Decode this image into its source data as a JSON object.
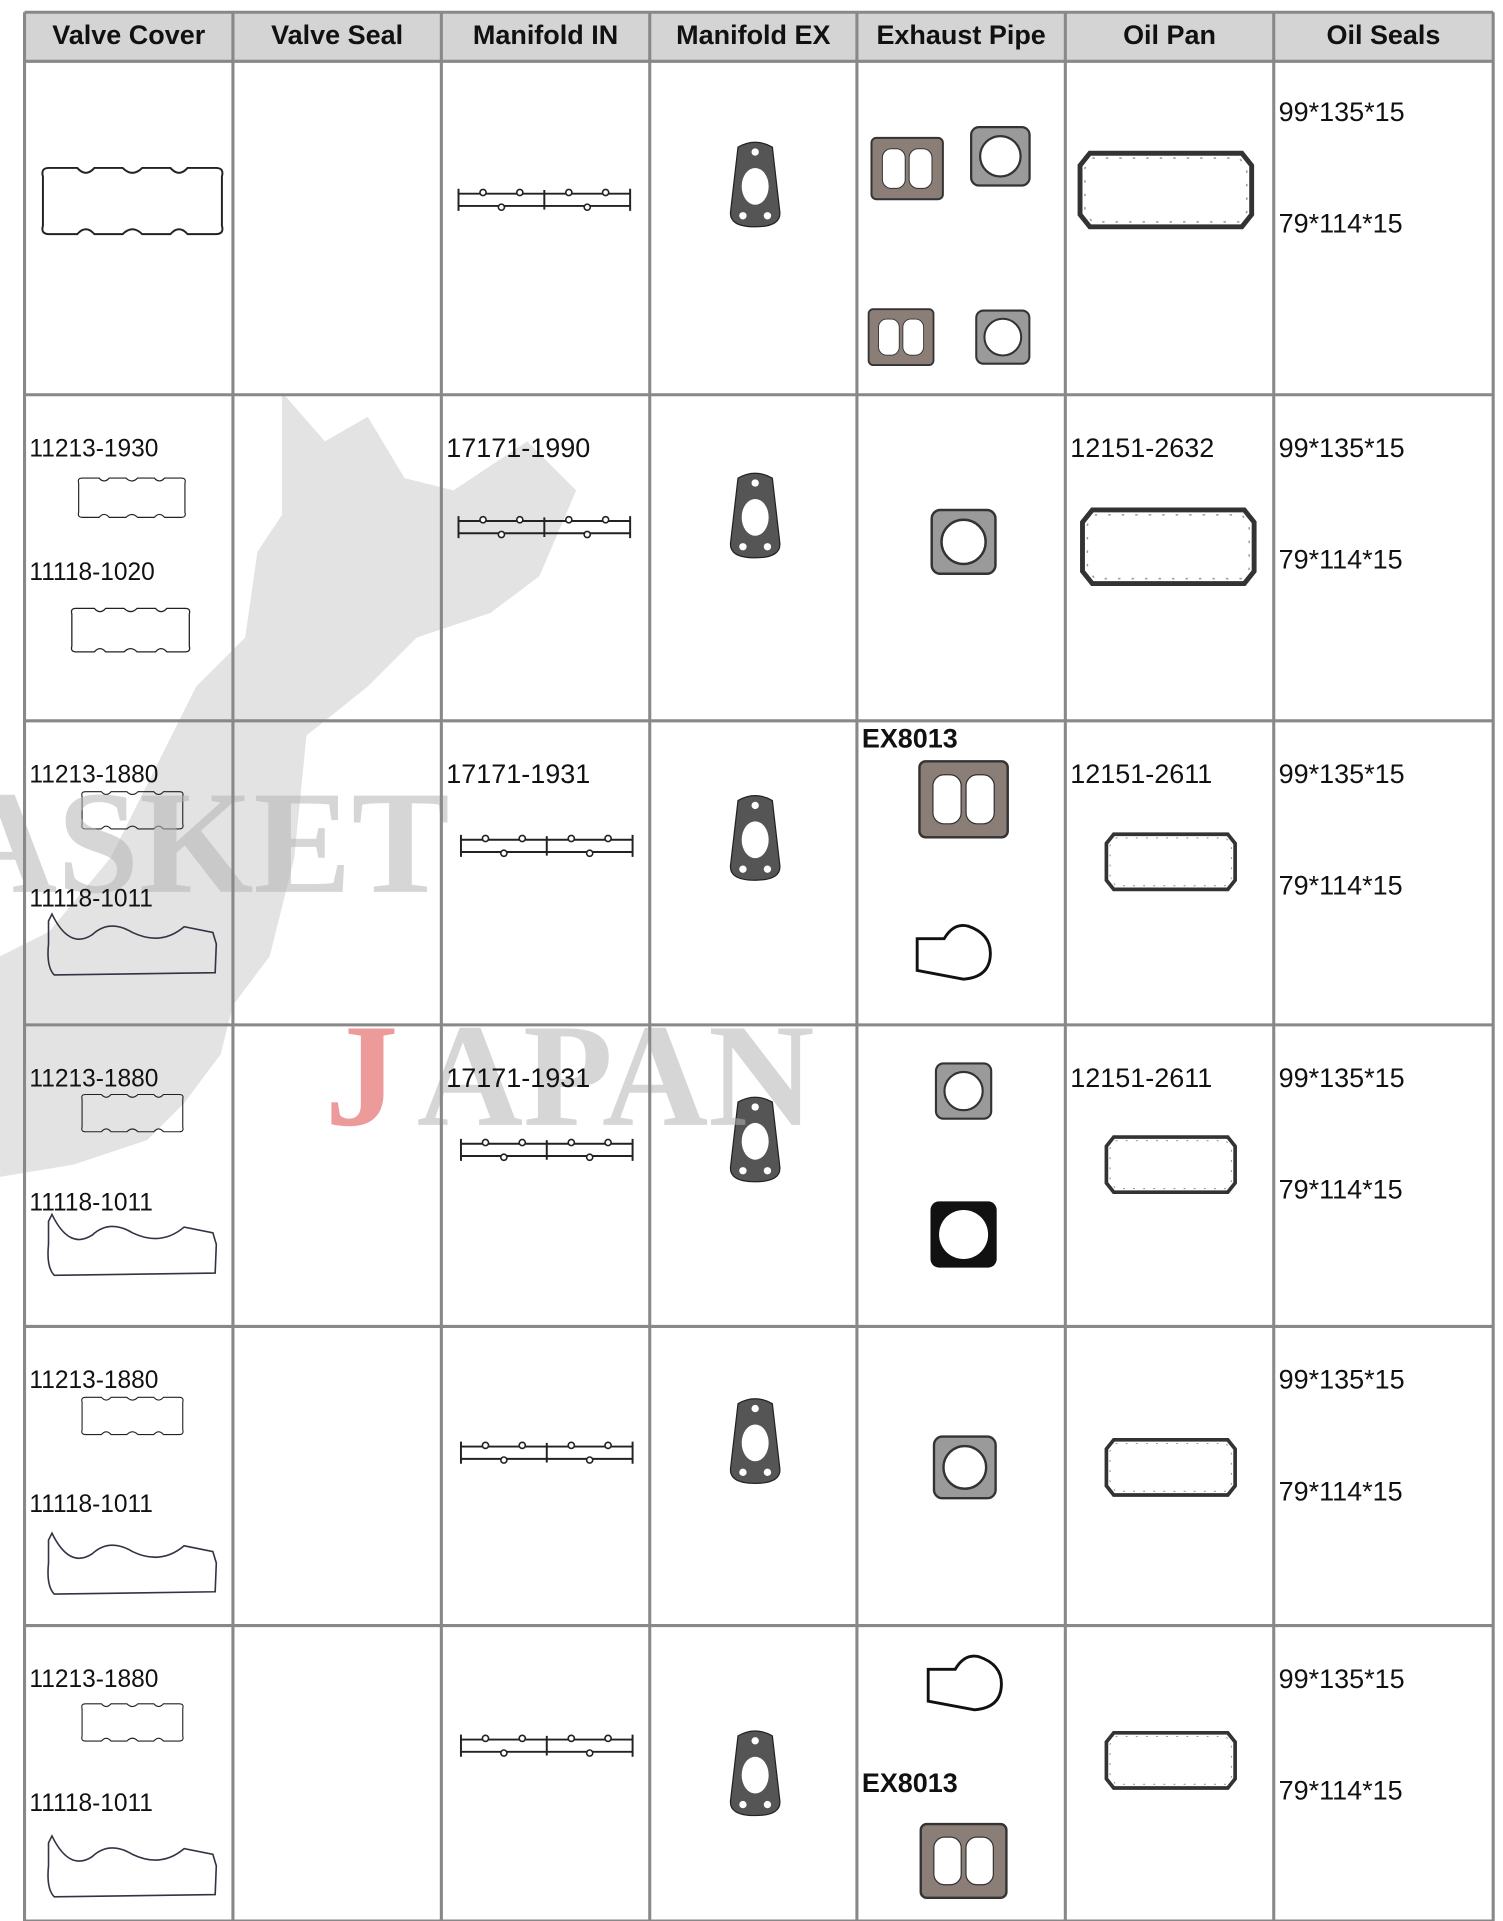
{
  "table": {
    "headers": [
      "Valve Cover",
      "Valve Seal",
      "Manifold IN",
      "Manifold EX",
      "Exhaust Pipe",
      "Oil Pan",
      "Oil Seals"
    ],
    "rows": [
      [
        [],
        [],
        [],
        [],
        [],
        [],
        [
          "99*135*15",
          "79*114*15"
        ]
      ],
      [
        [
          "11213-1930",
          "11118-1020"
        ],
        [],
        [
          "17171-1990"
        ],
        [],
        [],
        [
          "12151-2632"
        ],
        [
          "99*135*15",
          "79*114*15"
        ]
      ],
      [
        [
          "11213-1880",
          "11118-1011"
        ],
        [],
        [
          "17171-1931"
        ],
        [],
        [
          "EX8013"
        ],
        [
          "12151-2611"
        ],
        [
          "99*135*15",
          "79*114*15"
        ]
      ],
      [
        [
          "11213-1880",
          "11118-1011"
        ],
        [],
        [
          "17171-1931"
        ],
        [],
        [],
        [
          "12151-2611"
        ],
        [
          "99*135*15",
          "79*114*15"
        ]
      ],
      [
        [
          "11213-1880",
          "11118-1011"
        ],
        [],
        [],
        [],
        [],
        [],
        [
          "99*135*15",
          "79*114*15"
        ]
      ],
      [
        [
          "11213-1880",
          "11118-1011"
        ],
        [],
        [],
        [],
        [
          "EX8013"
        ],
        [],
        [
          "99*135*15",
          "79*114*15"
        ]
      ]
    ]
  },
  "watermark": {
    "left": "ASKET",
    "bottom": [
      "J",
      "APAN"
    ]
  }
}
